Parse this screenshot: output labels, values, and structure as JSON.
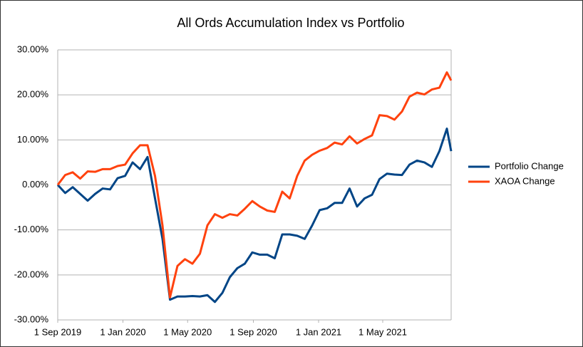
{
  "chart_data": {
    "type": "line",
    "title": "All Ords Accumulation Index vs Portfolio",
    "x": [
      "2019-09-01",
      "2019-09-15",
      "2019-09-29",
      "2019-10-13",
      "2019-10-27",
      "2019-11-10",
      "2019-11-24",
      "2019-12-08",
      "2019-12-22",
      "2020-01-05",
      "2020-01-19",
      "2020-02-02",
      "2020-02-16",
      "2020-03-01",
      "2020-03-15",
      "2020-03-29",
      "2020-04-12",
      "2020-04-26",
      "2020-05-10",
      "2020-05-24",
      "2020-06-07",
      "2020-06-21",
      "2020-07-05",
      "2020-07-19",
      "2020-08-02",
      "2020-08-16",
      "2020-08-30",
      "2020-09-13",
      "2020-09-27",
      "2020-10-11",
      "2020-10-25",
      "2020-11-08",
      "2020-11-22",
      "2020-12-06",
      "2020-12-20",
      "2021-01-03",
      "2021-01-17",
      "2021-01-31",
      "2021-02-14",
      "2021-02-28",
      "2021-03-14",
      "2021-03-28",
      "2021-04-11",
      "2021-04-25",
      "2021-05-09",
      "2021-05-23",
      "2021-06-06",
      "2021-06-20",
      "2021-07-04",
      "2021-07-18",
      "2021-08-01",
      "2021-08-15",
      "2021-08-29",
      "2021-09-06"
    ],
    "series": [
      {
        "name": "Portfolio Change",
        "color": "#004586",
        "values": [
          0,
          -1.8,
          -0.5,
          -2,
          -3.5,
          -2,
          -0.8,
          -1,
          1.5,
          2,
          5,
          3.5,
          6.2,
          -3,
          -12,
          -25.5,
          -24.8,
          -24.8,
          -24.7,
          -24.8,
          -24.5,
          -26,
          -24,
          -20.5,
          -18.5,
          -17.5,
          -15,
          -15.5,
          -15.5,
          -16.3,
          -11,
          -11,
          -11.3,
          -12,
          -9,
          -5.6,
          -5.2,
          -4,
          -4,
          -0.8,
          -4.8,
          -3,
          -2.2,
          1.3,
          2.5,
          2.3,
          2.2,
          4.5,
          5.4,
          5,
          4,
          7.5,
          12.5,
          7.5
        ]
      },
      {
        "name": "XAOA Change",
        "color": "#ff420e",
        "values": [
          0,
          2.2,
          2.8,
          1.4,
          3,
          2.9,
          3.5,
          3.5,
          4.2,
          4.5,
          7,
          8.8,
          8.8,
          2,
          -9,
          -25,
          -18,
          -16.5,
          -17.5,
          -15.3,
          -9,
          -6.5,
          -7.3,
          -6.5,
          -6.8,
          -5.3,
          -3.6,
          -4.8,
          -5.7,
          -6,
          -1.5,
          -3,
          2,
          5.4,
          6.7,
          7.6,
          8.2,
          9.4,
          9,
          10.8,
          9.2,
          10.2,
          11,
          15.5,
          15.3,
          14.5,
          16.3,
          19.6,
          20.5,
          20.1,
          21.2,
          21.6,
          25,
          23.2
        ]
      }
    ],
    "xlim": [
      "2019-09-01",
      "2021-09-06"
    ],
    "xticks": [
      {
        "value": "2019-09-01",
        "label": "1 Sep 2019"
      },
      {
        "value": "2020-01-01",
        "label": "1 Jan 2020"
      },
      {
        "value": "2020-05-01",
        "label": "1 May 2020"
      },
      {
        "value": "2020-09-01",
        "label": "1 Sep 2020"
      },
      {
        "value": "2021-01-01",
        "label": "1 Jan 2021"
      },
      {
        "value": "2021-05-01",
        "label": "1 May 2021"
      }
    ],
    "ylim": [
      -30,
      30
    ],
    "yticks": [
      {
        "value": -30,
        "label": "-30.00%"
      },
      {
        "value": -20,
        "label": "-20.00%"
      },
      {
        "value": -10,
        "label": "-10.00%"
      },
      {
        "value": 0,
        "label": "0.00%"
      },
      {
        "value": 10,
        "label": "10.00%"
      },
      {
        "value": 20,
        "label": "20.00%"
      },
      {
        "value": 30,
        "label": "30.00%"
      }
    ],
    "grid": true,
    "legend": "right"
  }
}
